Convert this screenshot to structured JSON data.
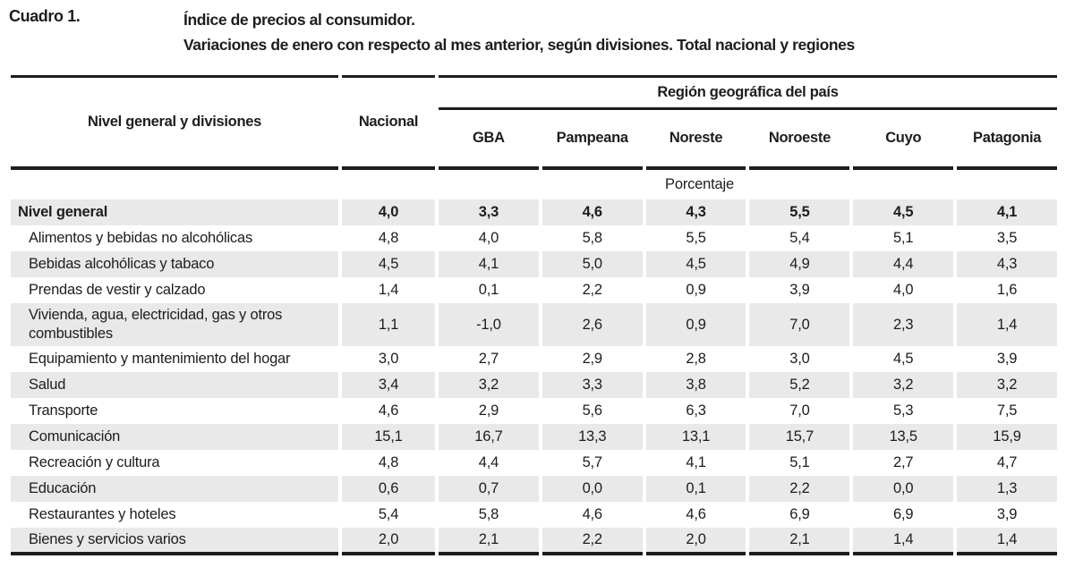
{
  "page": {
    "label": "Cuadro 1.",
    "title_line1": "Índice de precios al consumidor.",
    "title_line2": "Variaciones de enero con respecto al mes anterior, según divisiones. Total nacional y regiones"
  },
  "table": {
    "headers": {
      "divisions": "Nivel general y divisiones",
      "nacional": "Nacional",
      "region_group": "Región geográfica del país",
      "regions": [
        "GBA",
        "Pampeana",
        "Noreste",
        "Noroeste",
        "Cuyo",
        "Patagonia"
      ]
    },
    "unit_label": "Porcentaje",
    "rows": [
      {
        "label": "Nivel general",
        "bold": true,
        "shaded": true,
        "indent": false,
        "values": [
          "4,0",
          "3,3",
          "4,6",
          "4,3",
          "5,5",
          "4,5",
          "4,1"
        ]
      },
      {
        "label": "Alimentos y bebidas no alcohólicas",
        "bold": false,
        "shaded": false,
        "indent": true,
        "values": [
          "4,8",
          "4,0",
          "5,8",
          "5,5",
          "5,4",
          "5,1",
          "3,5"
        ]
      },
      {
        "label": "Bebidas alcohólicas y tabaco",
        "bold": false,
        "shaded": true,
        "indent": true,
        "values": [
          "4,5",
          "4,1",
          "5,0",
          "4,5",
          "4,9",
          "4,4",
          "4,3"
        ]
      },
      {
        "label": "Prendas de vestir y calzado",
        "bold": false,
        "shaded": false,
        "indent": true,
        "values": [
          "1,4",
          "0,1",
          "2,2",
          "0,9",
          "3,9",
          "4,0",
          "1,6"
        ]
      },
      {
        "label": "Vivienda, agua, electricidad, gas y otros combustibles",
        "bold": false,
        "shaded": true,
        "indent": true,
        "values": [
          "1,1",
          "-1,0",
          "2,6",
          "0,9",
          "7,0",
          "2,3",
          "1,4"
        ]
      },
      {
        "label": "Equipamiento y mantenimiento del hogar",
        "bold": false,
        "shaded": false,
        "indent": true,
        "values": [
          "3,0",
          "2,7",
          "2,9",
          "2,8",
          "3,0",
          "4,5",
          "3,9"
        ]
      },
      {
        "label": "Salud",
        "bold": false,
        "shaded": true,
        "indent": true,
        "values": [
          "3,4",
          "3,2",
          "3,3",
          "3,8",
          "5,2",
          "3,2",
          "3,2"
        ]
      },
      {
        "label": "Transporte",
        "bold": false,
        "shaded": false,
        "indent": true,
        "values": [
          "4,6",
          "2,9",
          "5,6",
          "6,3",
          "7,0",
          "5,3",
          "7,5"
        ]
      },
      {
        "label": "Comunicación",
        "bold": false,
        "shaded": true,
        "indent": true,
        "values": [
          "15,1",
          "16,7",
          "13,3",
          "13,1",
          "15,7",
          "13,5",
          "15,9"
        ]
      },
      {
        "label": "Recreación y cultura",
        "bold": false,
        "shaded": false,
        "indent": true,
        "values": [
          "4,8",
          "4,4",
          "5,7",
          "4,1",
          "5,1",
          "2,7",
          "4,7"
        ]
      },
      {
        "label": "Educación",
        "bold": false,
        "shaded": true,
        "indent": true,
        "values": [
          "0,6",
          "0,7",
          "0,0",
          "0,1",
          "2,2",
          "0,0",
          "1,3"
        ]
      },
      {
        "label": "Restaurantes y hoteles",
        "bold": false,
        "shaded": false,
        "indent": true,
        "values": [
          "5,4",
          "5,8",
          "4,6",
          "4,6",
          "6,9",
          "6,9",
          "3,9"
        ]
      },
      {
        "label": "Bienes y servicios varios",
        "bold": false,
        "shaded": true,
        "indent": true,
        "values": [
          "2,0",
          "2,1",
          "2,2",
          "2,0",
          "2,1",
          "1,4",
          "1,4"
        ]
      }
    ]
  },
  "colors": {
    "text": "#1d1d1b",
    "rule": "#1d1d1b",
    "row_shade": "#e9e9e9"
  }
}
